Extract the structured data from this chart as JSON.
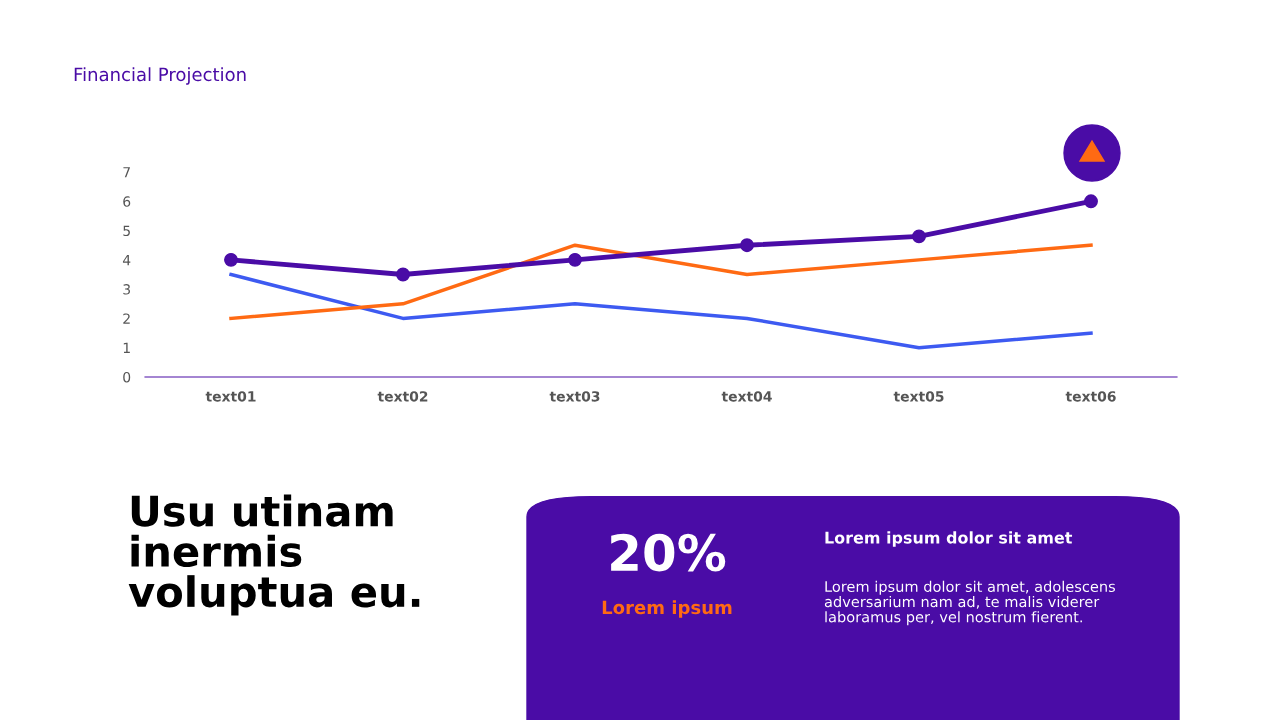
{
  "chart_data": {
    "type": "line",
    "title": "Financial Projection",
    "categories": [
      "text01",
      "text02",
      "text03",
      "text04",
      "text05",
      "text06"
    ],
    "series": [
      {
        "color": "#3d5af1",
        "values": [
          3.5,
          2,
          2.5,
          2,
          1,
          1.5
        ],
        "marker": "none"
      },
      {
        "color": "#ff6a13",
        "values": [
          2,
          2.5,
          4.5,
          3.5,
          4,
          4.5
        ],
        "marker": "none"
      },
      {
        "color": "#4a0ca6",
        "values": [
          4,
          3.5,
          4,
          4.5,
          4.8,
          6
        ],
        "marker": "circle"
      }
    ],
    "ylim": [
      0,
      7
    ],
    "yticks": [
      0,
      1,
      2,
      3,
      4,
      5,
      6,
      7
    ],
    "grid": false,
    "legend": false,
    "annotations": [
      "Usu utinam\ninermis\nvoluptua eu.",
      "20%",
      "Lorem ipsum",
      "Lorem ipsum dolor sit amet",
      "Lorem ipsum dolor sit amet, adolescens\nadversarium nam ad, te malis viderer\nlaboramus per, vel nostrum fierent."
    ]
  }
}
